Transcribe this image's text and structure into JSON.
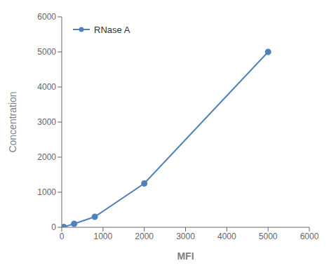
{
  "chart_data": {
    "type": "line",
    "xlabel": "MFI",
    "ylabel": "Concentration",
    "x": [
      50,
      300,
      800,
      2000,
      5000
    ],
    "series": [
      {
        "name": "RNase A",
        "color": "#4f81bd",
        "marker": "circle",
        "values": [
          10,
          100,
          300,
          1250,
          5000
        ]
      }
    ],
    "xlim": [
      0,
      6000
    ],
    "ylim": [
      0,
      6000
    ],
    "xticks": [
      0,
      1000,
      2000,
      3000,
      4000,
      5000,
      6000
    ],
    "yticks": [
      0,
      1000,
      2000,
      3000,
      4000,
      5000,
      6000
    ],
    "grid": false,
    "legend": "upper left"
  }
}
